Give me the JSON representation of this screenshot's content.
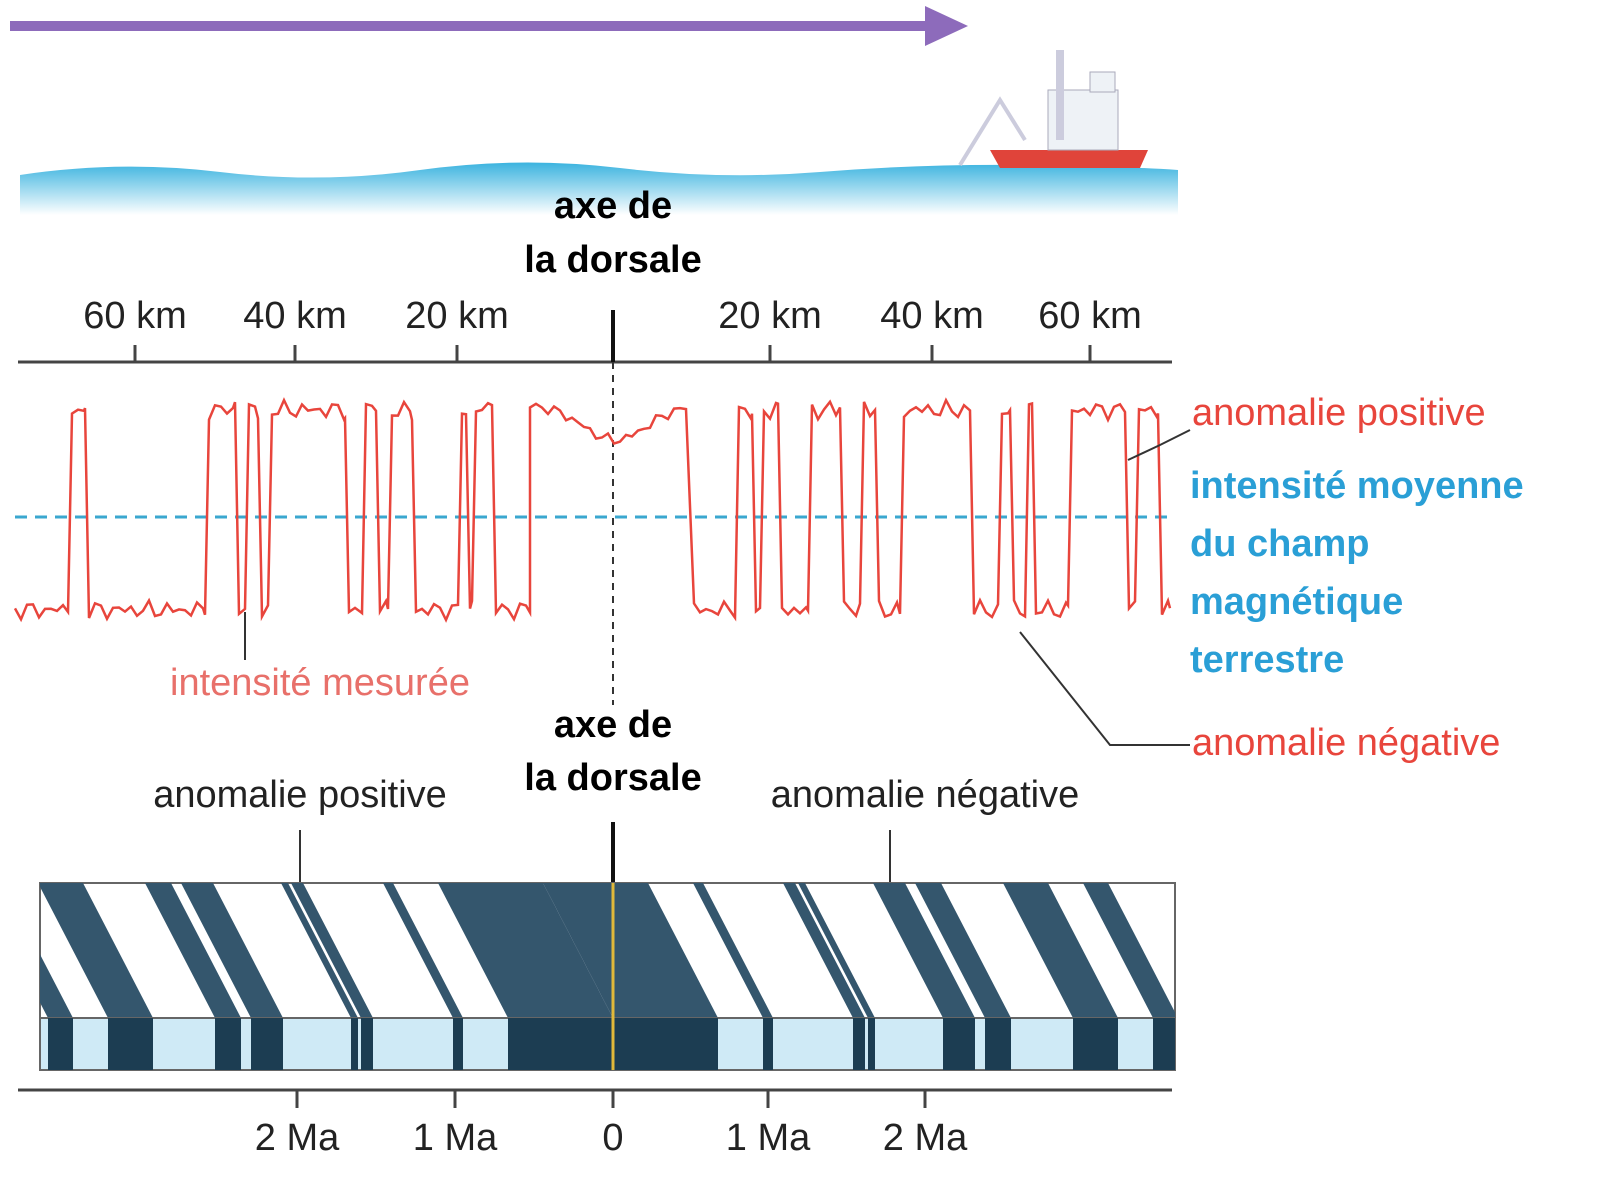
{
  "top_axis": {
    "axis_title": [
      "axe de",
      "la dorsale"
    ],
    "tick_labels": [
      "60 km",
      "40 km",
      "20 km",
      "20 km",
      "40 km",
      "60 km"
    ]
  },
  "profile": {
    "measured_label": "intensité mesurée",
    "positive_label": "anomalie positive",
    "mean_label": [
      "intensité moyenne",
      "du champ",
      "magnétique",
      "terrestre"
    ],
    "negative_label": "anomalie négative"
  },
  "bottom_axis": {
    "axis_title": [
      "axe de",
      "la dorsale"
    ],
    "positive_label": "anomalie positive",
    "negative_label": "anomalie négative",
    "tick_labels": [
      "2 Ma",
      "1 Ma",
      "0",
      "1 Ma",
      "2 Ma"
    ]
  }
}
